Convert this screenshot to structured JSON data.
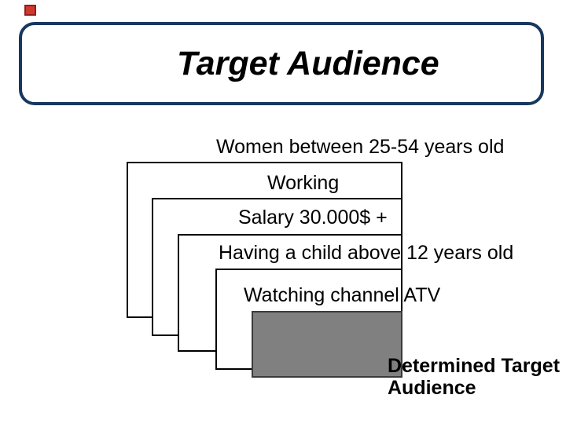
{
  "slide": {
    "title": "Target Audience"
  },
  "funnel": {
    "steps": [
      {
        "label": "Women between 25-54 years old"
      },
      {
        "label": "Working"
      },
      {
        "label": "Salary 30.000$ +"
      },
      {
        "label": "Having a child above 12 years old"
      },
      {
        "label": "Watching channel ATV"
      }
    ]
  },
  "determined": {
    "line1": "Determined Target",
    "line2": "Audience"
  },
  "colors": {
    "navy": "#17375e",
    "line": "#000000",
    "gray-fill": "#808080",
    "gray-line": "#3a3a3a",
    "red-fill": "#cf3a2b",
    "red-line": "#8f1f1f",
    "text": "#000000",
    "bg": "#ffffff"
  }
}
